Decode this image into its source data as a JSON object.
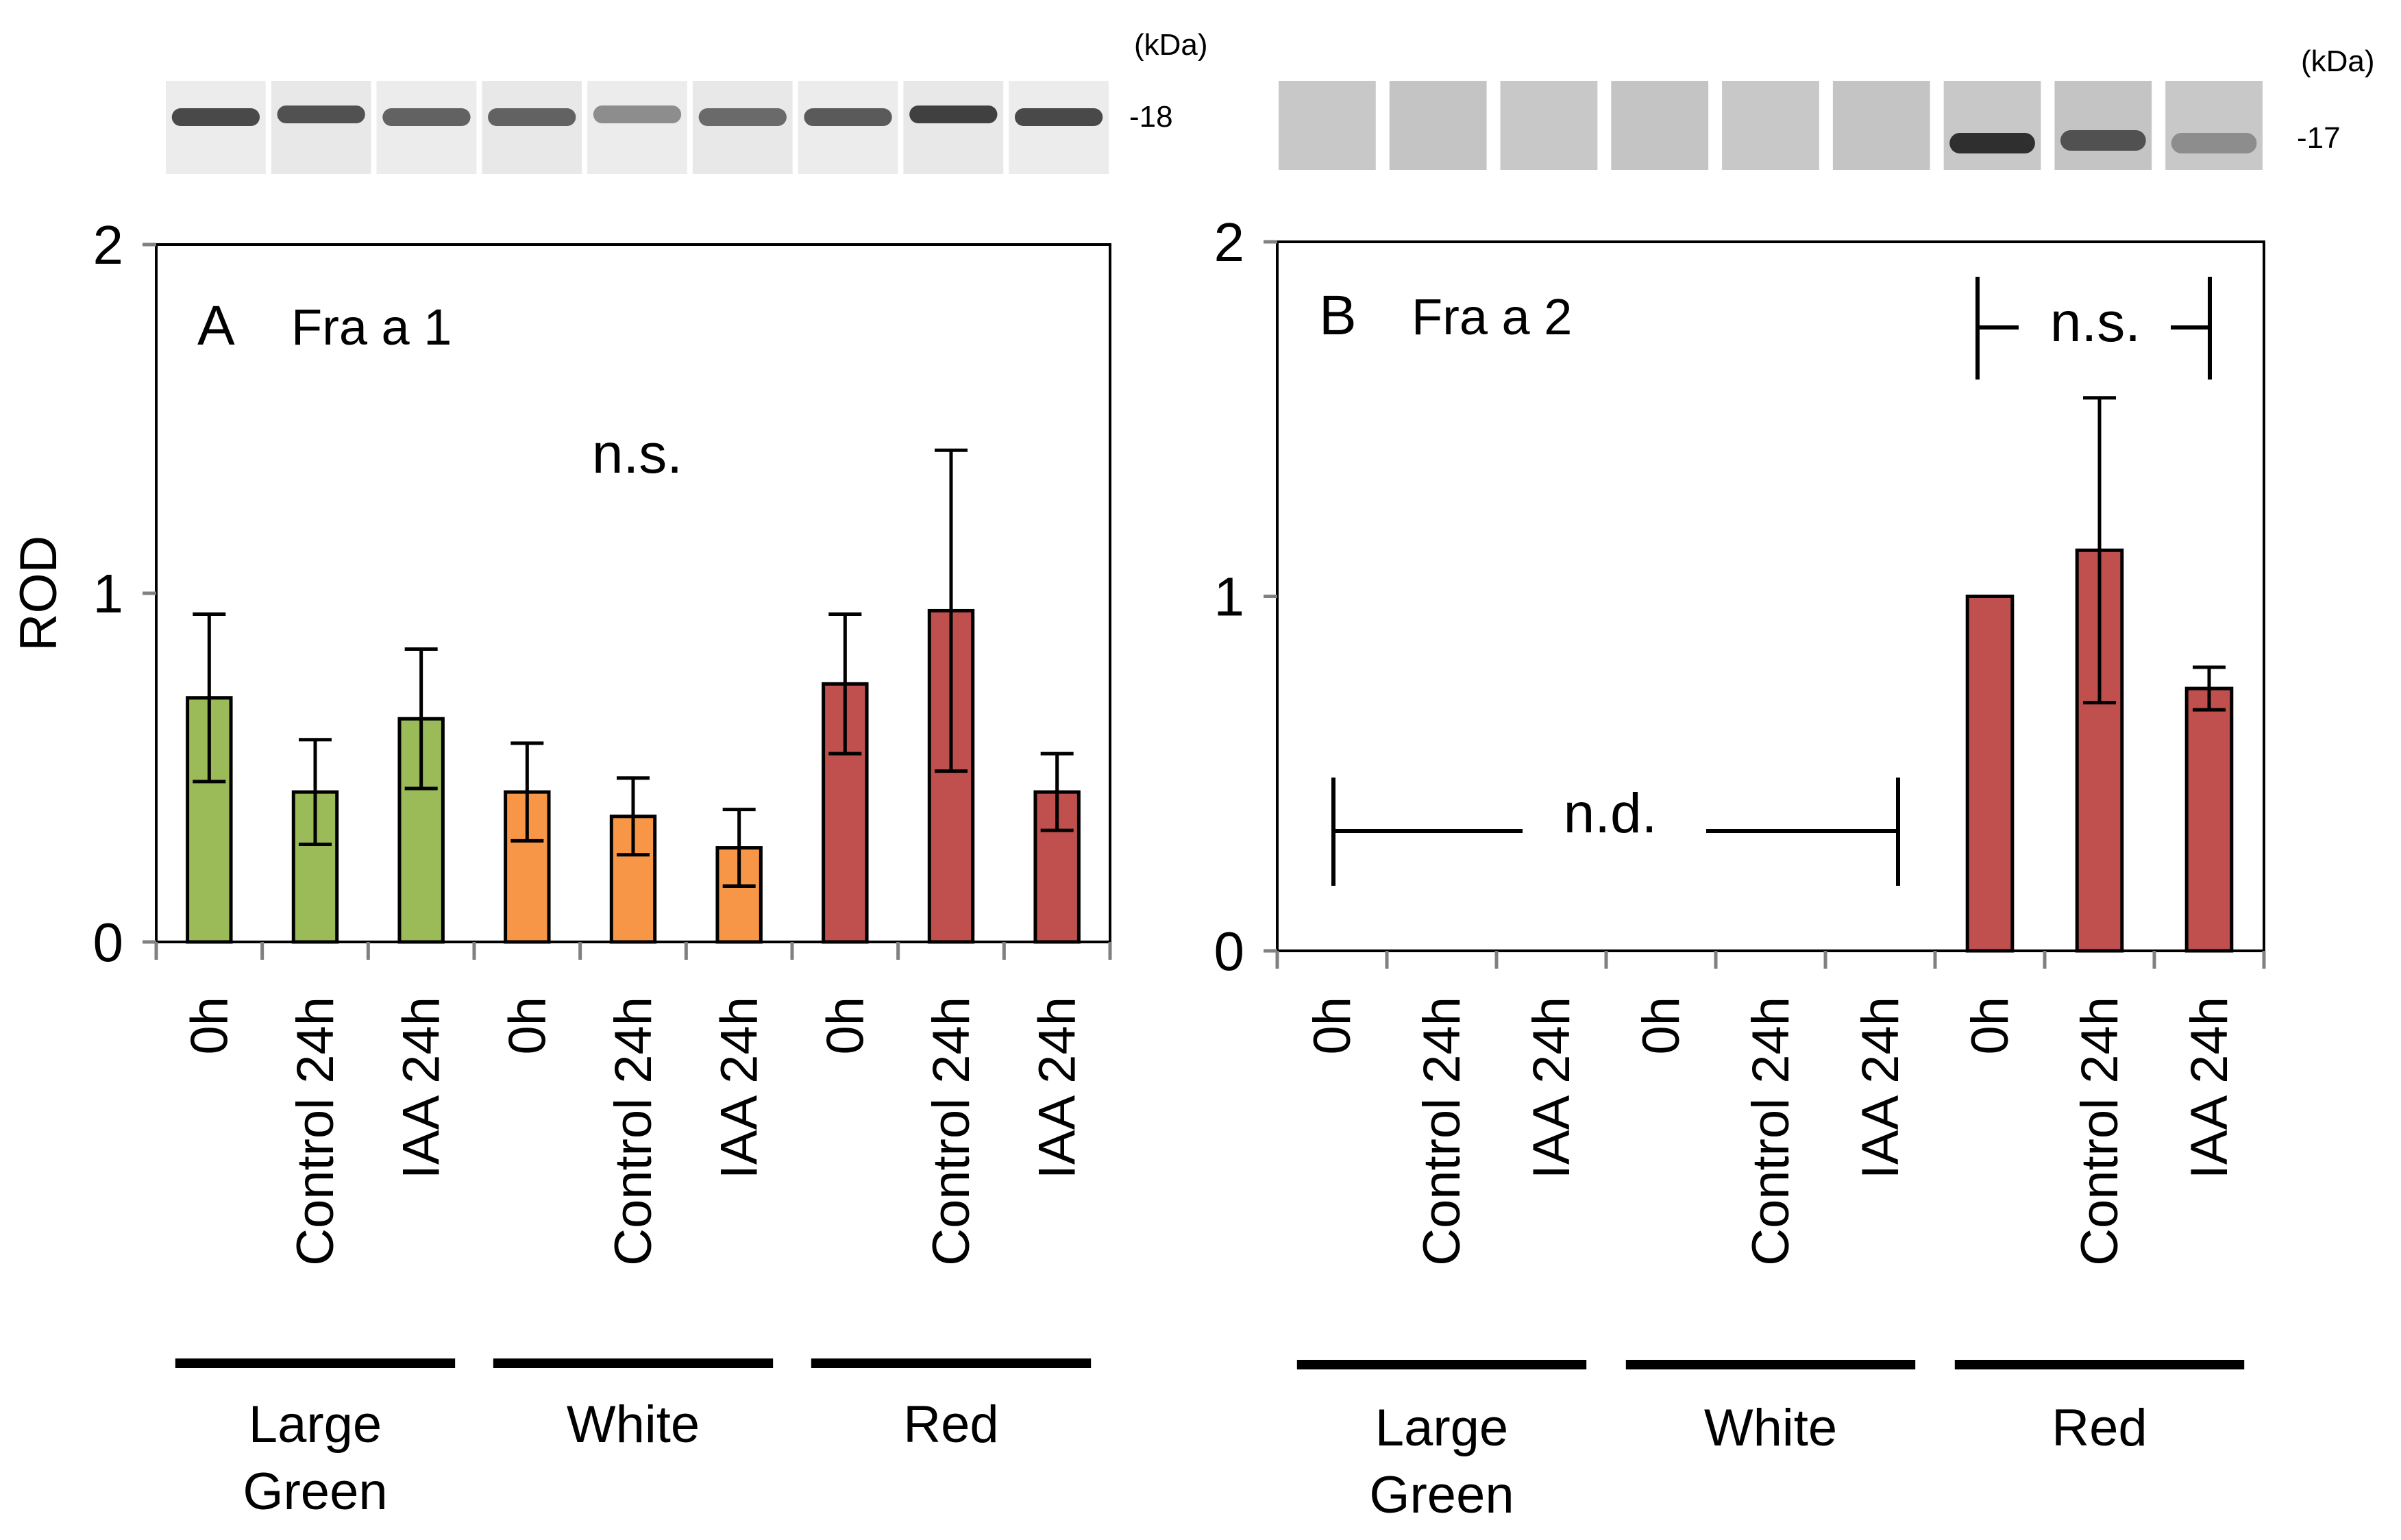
{
  "figure": {
    "panels": [
      "A",
      "B"
    ]
  },
  "colors": {
    "large_green": "#9BBB59",
    "white": "#F79646",
    "red": "#C0504D",
    "axis": "#808080",
    "ink": "#000000"
  },
  "chart_data": [
    {
      "type": "bar",
      "panel_letter": "A",
      "title": "Fra a 1",
      "ylabel": "ROD",
      "ylim": [
        0,
        2
      ],
      "yticks": [
        "0",
        "1",
        "2"
      ],
      "categories": [
        "0h",
        "Control 24h",
        "IAA 24h",
        "0h",
        "Control 24h",
        "IAA 24h",
        "0h",
        "Control 24h",
        "IAA 24h"
      ],
      "values": [
        0.7,
        0.43,
        0.64,
        0.43,
        0.36,
        0.27,
        0.74,
        0.95,
        0.43
      ],
      "errors": [
        0.24,
        0.15,
        0.2,
        0.14,
        0.11,
        0.11,
        0.2,
        0.46,
        0.11
      ],
      "groups": [
        {
          "name": "Large Green",
          "lines": [
            "Large",
            "Green"
          ],
          "color_key": "large_green"
        },
        {
          "name": "White",
          "lines": [
            "White"
          ],
          "color_key": "white"
        },
        {
          "name": "Red",
          "lines": [
            "Red"
          ],
          "color_key": "red"
        }
      ],
      "detected": [
        true,
        true,
        true,
        true,
        true,
        true,
        true,
        true,
        true
      ],
      "annotations": {
        "ns": "n.s."
      },
      "blot": {
        "unit_label": "(kDa)",
        "size_label": "-18",
        "intensity": [
          0.75,
          0.7,
          0.6,
          0.6,
          0.35,
          0.55,
          0.65,
          0.8,
          0.75
        ]
      }
    },
    {
      "type": "bar",
      "panel_letter": "B",
      "title": "Fra a 2",
      "ylabel": "",
      "ylim": [
        0,
        2
      ],
      "yticks": [
        "0",
        "1",
        "2"
      ],
      "categories": [
        "0h",
        "Control 24h",
        "IAA 24h",
        "0h",
        "Control 24h",
        "IAA 24h",
        "0h",
        "Control 24h",
        "IAA 24h"
      ],
      "values": [
        0,
        0,
        0,
        0,
        0,
        0,
        1.0,
        1.13,
        0.74
      ],
      "errors": [
        0,
        0,
        0,
        0,
        0,
        0,
        0,
        0.43,
        0.06
      ],
      "groups": [
        {
          "name": "Large Green",
          "lines": [
            "Large",
            "Green"
          ],
          "color_key": "large_green"
        },
        {
          "name": "White",
          "lines": [
            "White"
          ],
          "color_key": "white"
        },
        {
          "name": "Red",
          "lines": [
            "Red"
          ],
          "color_key": "red"
        }
      ],
      "detected": [
        false,
        false,
        false,
        false,
        false,
        false,
        true,
        true,
        true
      ],
      "annotations": {
        "nd": "n.d.",
        "ns": "n.s."
      },
      "blot": {
        "unit_label": "(kDa)",
        "size_label": "-17",
        "intensity": [
          0,
          0,
          0,
          0,
          0,
          0,
          0.9,
          0.7,
          0.35
        ]
      }
    }
  ]
}
